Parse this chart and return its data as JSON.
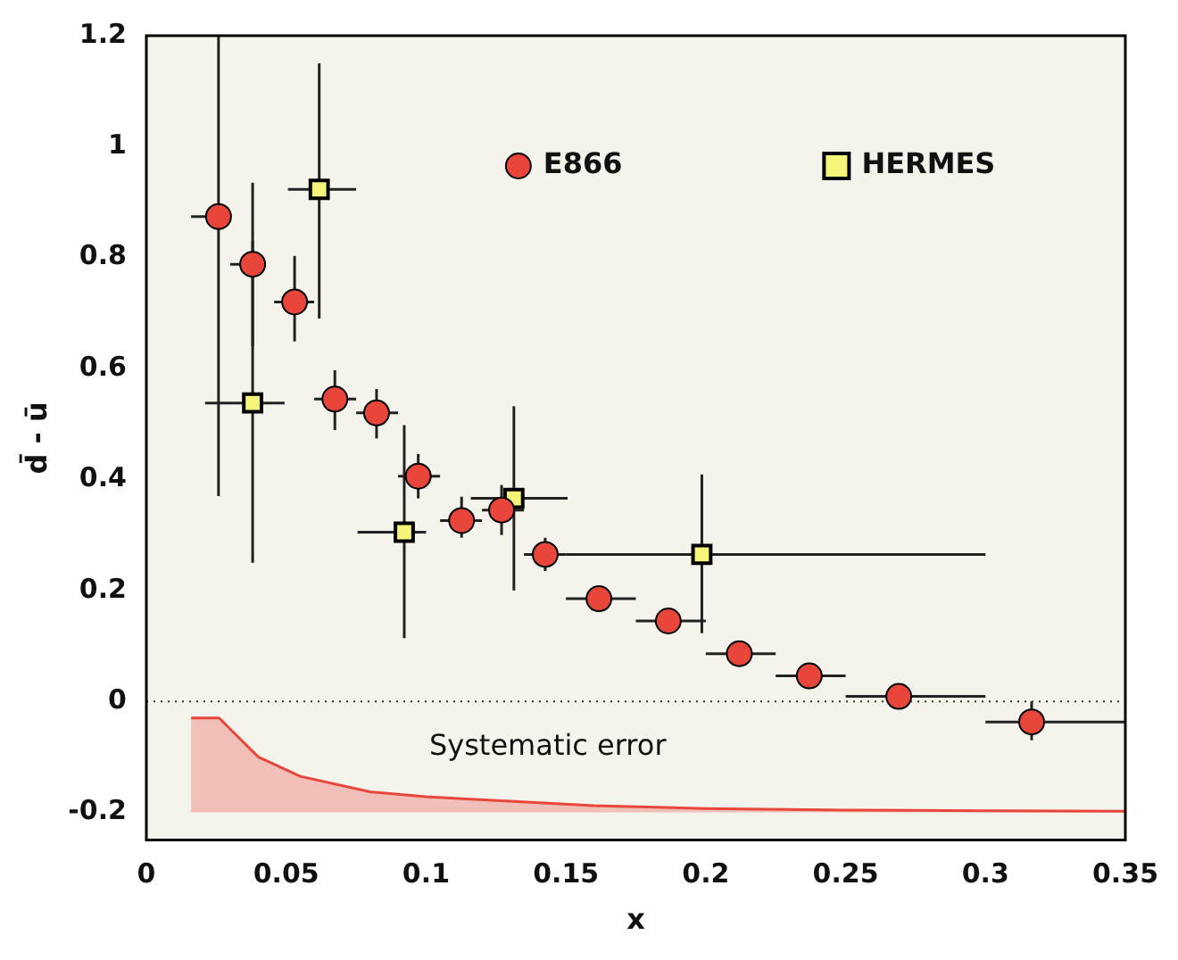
{
  "chart_data": {
    "type": "scatter",
    "xlabel": "x",
    "ylabel": "d̄ - ū",
    "xlim": [
      0,
      0.35
    ],
    "ylim": [
      -0.25,
      1.2
    ],
    "xticks": [
      0,
      0.05,
      0.1,
      0.15,
      0.2,
      0.25,
      0.3,
      0.35
    ],
    "yticks": [
      -0.2,
      0,
      0.2,
      0.4,
      0.6,
      0.8,
      1,
      1.2
    ],
    "legend": "top",
    "series": [
      {
        "type": "line",
        "color": "#e8463a",
        "x": [
          0.016,
          0.026,
          0.04,
          0.055,
          0.08,
          0.1,
          0.13,
          0.16,
          0.2,
          0.25,
          0.3,
          0.35
        ],
        "values": [
          -0.03,
          -0.03,
          -0.1,
          -0.135,
          -0.163,
          -0.172,
          -0.18,
          -0.188,
          -0.193,
          -0.196,
          -0.197,
          -0.198
        ],
        "upper": [
          -0.03,
          -0.03,
          -0.1,
          -0.135,
          -0.163,
          -0.172,
          -0.18,
          -0.188,
          -0.193,
          -0.196,
          -0.197,
          -0.198
        ],
        "lower": [
          -0.2,
          -0.2,
          -0.2,
          -0.2,
          -0.2,
          -0.2,
          -0.2,
          -0.2,
          -0.2,
          -0.2,
          -0.2,
          -0.2
        ]
      },
      {
        "name": "E866",
        "marker": "circle",
        "color": "#e8463a",
        "x": [
          0.0258,
          0.038,
          0.053,
          0.0674,
          0.0823,
          0.0972,
          0.1127,
          0.127,
          0.1426,
          0.1618,
          0.1866,
          0.212,
          0.237,
          0.269,
          0.3165
        ],
        "values": [
          0.874,
          0.788,
          0.72,
          0.545,
          0.52,
          0.406,
          0.326,
          0.345,
          0.265,
          0.185,
          0.145,
          0.086,
          0.046,
          0.009,
          -0.037
        ],
        "errors": [
          [
            0.37,
            1.2
          ],
          [
            0.64,
            0.935
          ],
          [
            0.649,
            0.803
          ],
          [
            0.489,
            0.597
          ],
          [
            0.474,
            0.563
          ],
          [
            0.366,
            0.446
          ],
          [
            0.295,
            0.369
          ],
          [
            0.3,
            0.39
          ],
          [
            0.235,
            0.295
          ],
          [
            0.17,
            0.2
          ],
          null,
          null,
          null,
          null,
          [
            -0.07,
            0
          ]
        ],
        "xerrors": [
          [
            0.016,
            0.03
          ],
          [
            0.03,
            0.0425
          ],
          [
            0.0457,
            0.06
          ],
          [
            0.06,
            0.075
          ],
          [
            0.075,
            0.09
          ],
          [
            0.09,
            0.105
          ],
          [
            0.105,
            0.12
          ],
          [
            0.12,
            0.135
          ],
          [
            0.135,
            0.15
          ],
          [
            0.15,
            0.175
          ],
          [
            0.175,
            0.2
          ],
          [
            0.2,
            0.225
          ],
          [
            0.225,
            0.25
          ],
          [
            0.25,
            0.3
          ],
          [
            0.3,
            0.35
          ]
        ]
      },
      {
        "name": "HERMES",
        "marker": "square",
        "color": "#f5f57a",
        "x": [
          0.038,
          0.0618,
          0.0922,
          0.1314,
          0.1986
        ],
        "values": [
          0.538,
          0.923,
          0.305,
          0.366,
          0.265
        ],
        "errors": [
          [
            0.25,
            0.83
          ],
          [
            0.69,
            1.15
          ],
          [
            0.114,
            0.498
          ],
          [
            0.2,
            0.532
          ],
          [
            0.123,
            0.409
          ]
        ],
        "xerrors": [
          [
            0.021,
            0.0494
          ],
          [
            0.0506,
            0.075
          ],
          [
            0.0755,
            0.1
          ],
          [
            0.116,
            0.1506
          ],
          [
            0.15,
            0.3
          ]
        ]
      }
    ],
    "ref_lines": [
      {
        "axis": "y",
        "value": 0,
        "line_style": "dotted",
        "color": "#333333"
      }
    ],
    "annotations": [
      "Systematic error"
    ]
  }
}
